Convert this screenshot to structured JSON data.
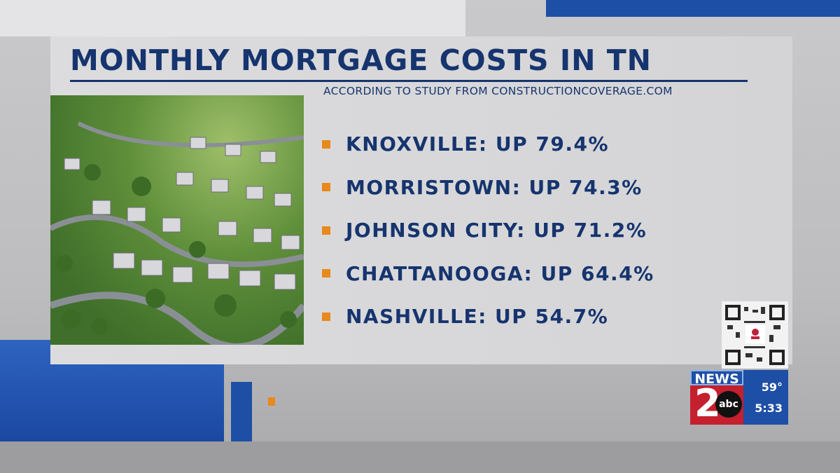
{
  "graphic": {
    "title": "MONTHLY MORTGAGE COSTS IN TN",
    "subtitle": "ACCORDING TO STUDY FROM CONSTRUCTIONCOVERAGE.COM",
    "items": [
      {
        "label": "KNOXVILLE: UP 79.4%"
      },
      {
        "label": "MORRISTOWN: UP 74.3%"
      },
      {
        "label": "JOHNSON CITY: UP 71.2%"
      },
      {
        "label": "CHATTANOOGA: UP 64.4%"
      },
      {
        "label": "NASHVILLE: UP 54.7%"
      }
    ],
    "colors": {
      "title": "#16346e",
      "bullet": "#e8891c",
      "accent_blue": "#1e4fa6"
    }
  },
  "station": {
    "logo_text": "NEWS 2 abc",
    "temperature": "59°",
    "time": "5:33"
  }
}
